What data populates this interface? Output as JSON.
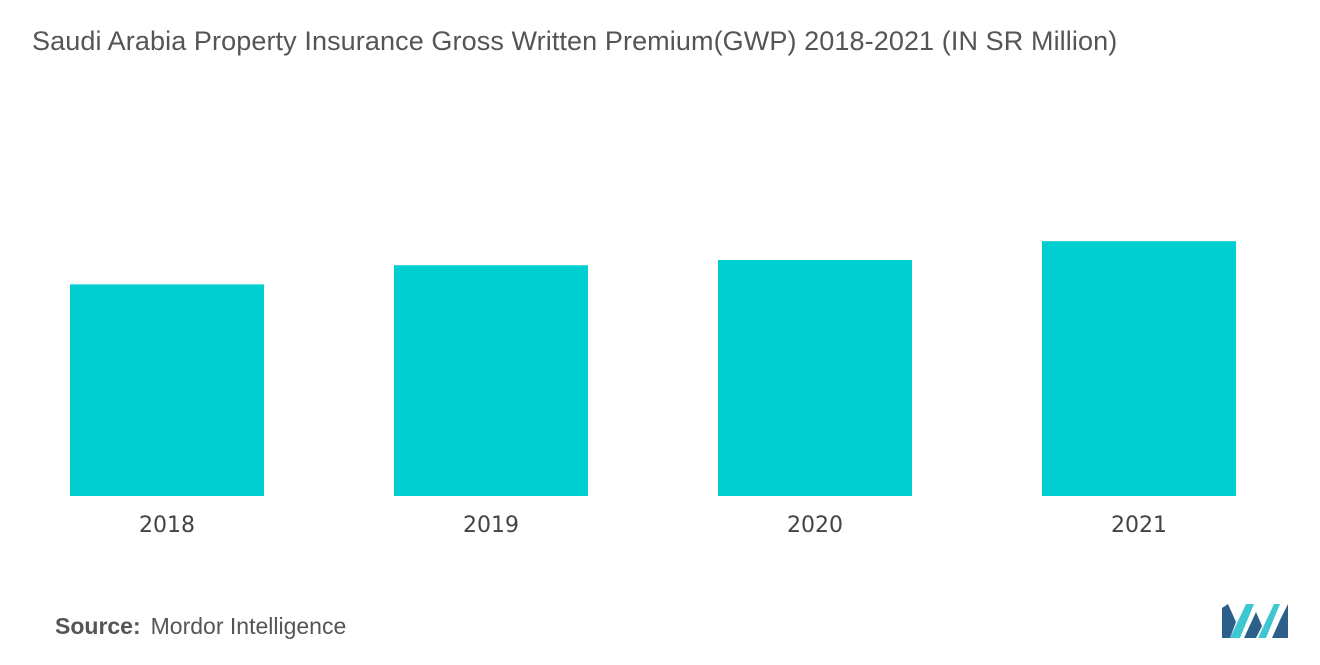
{
  "chart_data": {
    "type": "bar",
    "title": "Saudi Arabia Property Insurance Gross Written Premium(GWP) 2018-2021 (IN SR Million)",
    "categories": [
      "2018",
      "2019",
      "2020",
      "2021"
    ],
    "values": [
      2112,
      2303,
      2355,
      2543
    ],
    "xlabel": "",
    "ylabel": "",
    "ylim": [
      0,
      4950
    ],
    "grid": false,
    "legend": "none",
    "bar_color": "#00CED1"
  },
  "source": {
    "label": "Source:",
    "text": "Mordor Intelligence"
  },
  "colors": {
    "bar": "#00CED1",
    "logo_dark": "#2C5F8A",
    "logo_light": "#3EC6D3"
  }
}
